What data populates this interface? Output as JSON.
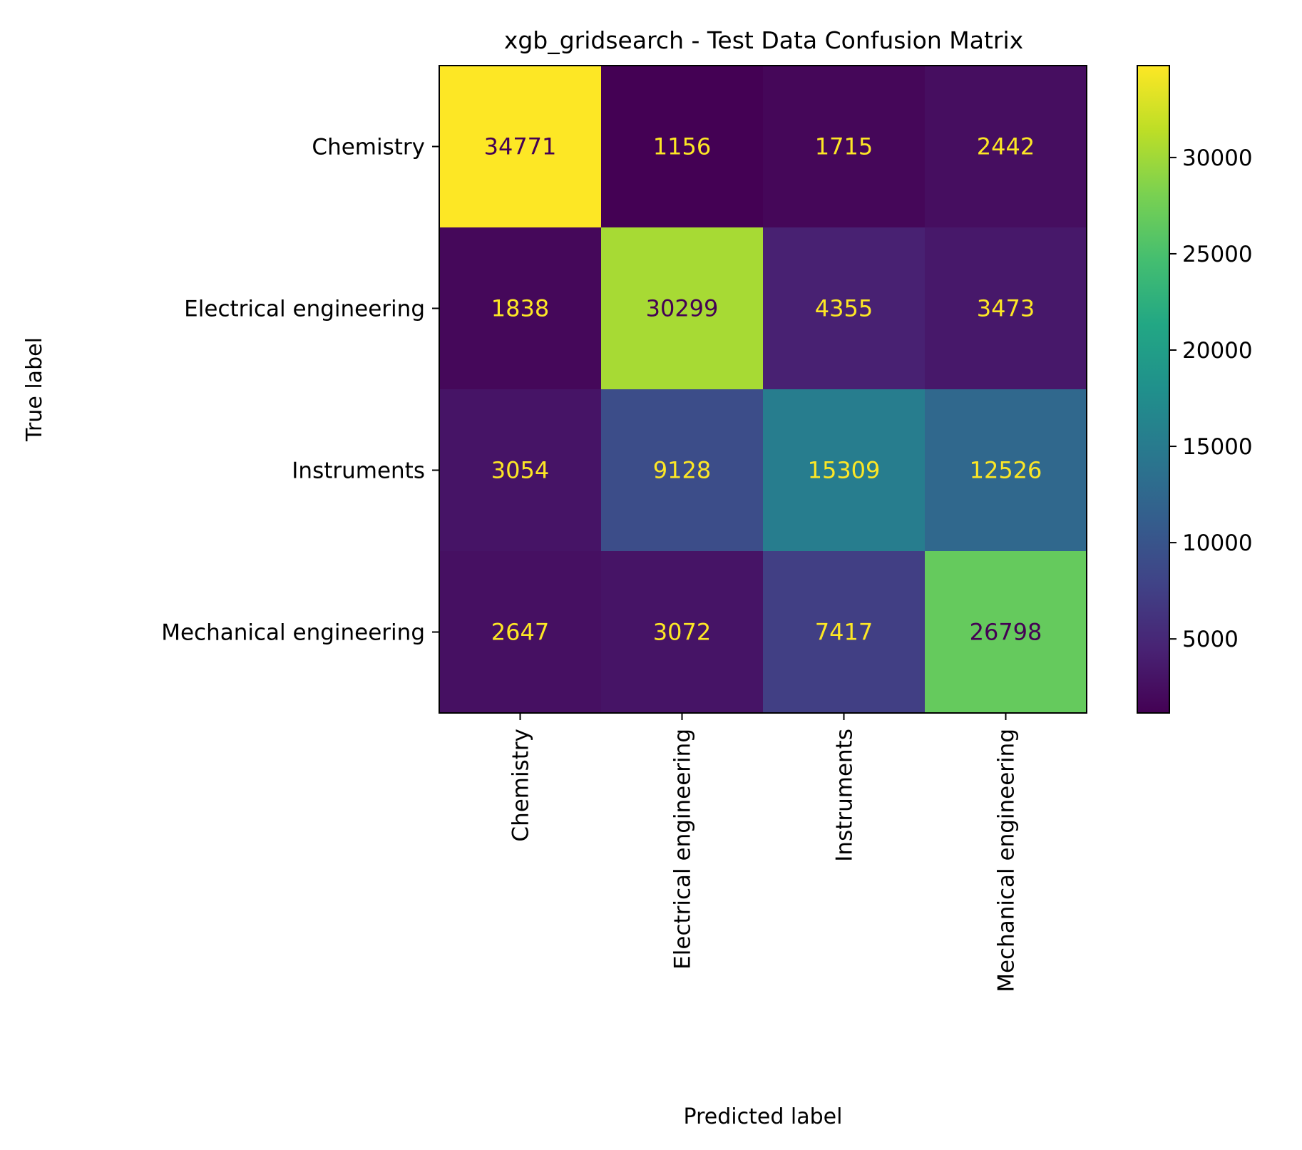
{
  "chart_data": {
    "type": "heatmap",
    "title": "xgb_gridsearch - Test Data Confusion Matrix",
    "xlabel": "Predicted label",
    "ylabel": "True label",
    "x_categories": [
      "Chemistry",
      "Electrical engineering",
      "Instruments",
      "Mechanical engineering"
    ],
    "y_categories": [
      "Chemistry",
      "Electrical engineering",
      "Instruments",
      "Mechanical engineering"
    ],
    "values": [
      [
        34771,
        1156,
        1715,
        2442
      ],
      [
        1838,
        30299,
        4355,
        3473
      ],
      [
        3054,
        9128,
        15309,
        12526
      ],
      [
        2647,
        3072,
        7417,
        26798
      ]
    ],
    "colormap": "viridis",
    "colorbar": {
      "min": 1156,
      "max": 34771,
      "ticks": [
        5000,
        10000,
        15000,
        20000,
        25000,
        30000
      ],
      "tick_labels": [
        "5000",
        "10000",
        "15000",
        "20000",
        "25000",
        "30000"
      ]
    },
    "text_colors": {
      "light": "#fde725",
      "dark": "#440154"
    }
  }
}
